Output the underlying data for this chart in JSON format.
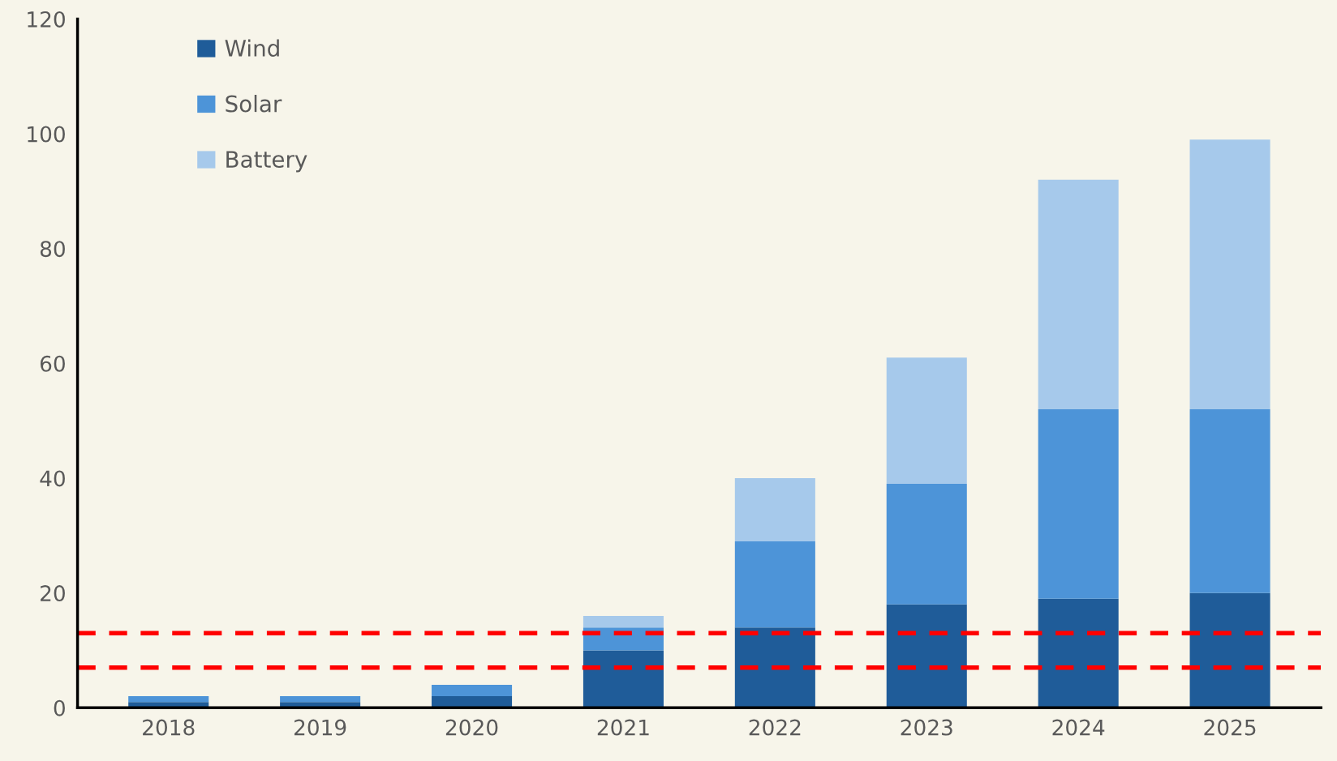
{
  "chart_data": {
    "type": "bar",
    "stacked": true,
    "categories": [
      "2018",
      "2019",
      "2020",
      "2021",
      "2022",
      "2023",
      "2024",
      "2025"
    ],
    "series": [
      {
        "name": "Wind",
        "color": "#1f5c99",
        "values": [
          1,
          1,
          2,
          10,
          14,
          18,
          19,
          20
        ]
      },
      {
        "name": "Solar",
        "color": "#4d94d8",
        "values": [
          1,
          1,
          2,
          4,
          15,
          21,
          33,
          32
        ]
      },
      {
        "name": "Battery",
        "color": "#a6c9eb",
        "values": [
          0,
          0,
          0,
          2,
          11,
          22,
          40,
          47
        ]
      }
    ],
    "ylim": [
      0,
      120
    ],
    "yticks": [
      0,
      20,
      40,
      60,
      80,
      100,
      120
    ],
    "ref_lines": [
      {
        "axis": "y",
        "value": 13,
        "color": "#ff0000",
        "line_style": "dashed"
      },
      {
        "axis": "y",
        "value": 7,
        "color": "#ff0000",
        "line_style": "dashed"
      }
    ],
    "legend": "top left",
    "grid": false
  }
}
